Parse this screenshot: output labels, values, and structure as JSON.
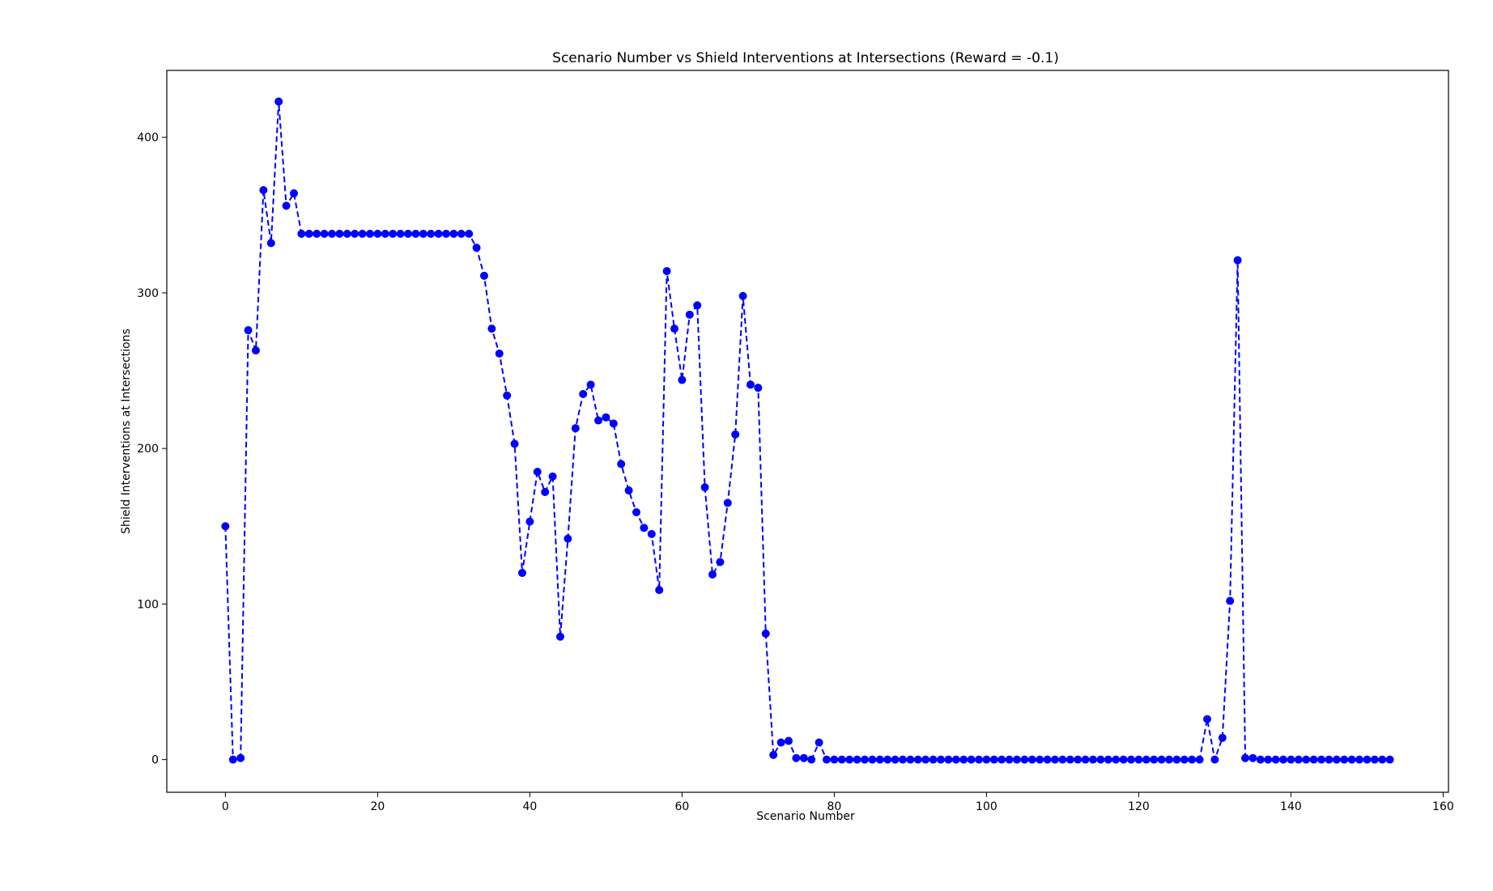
{
  "chart_data": {
    "type": "line",
    "title": "Scenario Number vs Shield Interventions at Intersections (Reward = -0.1)",
    "xlabel": "Scenario Number",
    "ylabel": "Shield Interventions at Intersections",
    "xlim": [
      -7.7,
      160.7
    ],
    "ylim": [
      -21,
      443
    ],
    "xticks": [
      0,
      20,
      40,
      60,
      80,
      100,
      120,
      140,
      160
    ],
    "yticks": [
      0,
      100,
      200,
      300,
      400
    ],
    "grid": false,
    "line_style": "dashed",
    "marker": "circle",
    "color": "#0000ff",
    "series": [
      {
        "x": [
          0,
          1,
          2,
          3,
          4,
          5,
          6,
          7,
          8,
          9,
          10,
          11,
          12,
          13,
          14,
          15,
          16,
          17,
          18,
          19,
          20,
          21,
          22,
          23,
          24,
          25,
          26,
          27,
          28,
          29,
          30,
          31,
          32,
          33,
          34,
          35,
          36,
          37,
          38,
          39,
          40,
          41,
          42,
          43,
          44,
          45,
          46,
          47,
          48,
          49,
          50,
          51,
          52,
          53,
          54,
          55,
          56,
          57,
          58,
          59,
          60,
          61,
          62,
          63,
          64,
          65,
          66,
          67,
          68,
          69,
          70,
          71,
          72,
          73,
          74,
          75,
          76,
          77,
          78,
          79,
          80,
          81,
          82,
          83,
          84,
          85,
          86,
          87,
          88,
          89,
          90,
          91,
          92,
          93,
          94,
          95,
          96,
          97,
          98,
          99,
          100,
          101,
          102,
          103,
          104,
          105,
          106,
          107,
          108,
          109,
          110,
          111,
          112,
          113,
          114,
          115,
          116,
          117,
          118,
          119,
          120,
          121,
          122,
          123,
          124,
          125,
          126,
          127,
          128,
          129,
          130,
          131,
          132,
          133,
          134,
          135,
          136,
          137,
          138,
          139,
          140,
          141,
          142,
          143,
          144,
          145,
          146,
          147,
          148,
          149,
          150,
          151,
          152,
          153
        ],
        "y": [
          150,
          0,
          1,
          276,
          263,
          366,
          332,
          423,
          356,
          364,
          338,
          338,
          338,
          338,
          338,
          338,
          338,
          338,
          338,
          338,
          338,
          338,
          338,
          338,
          338,
          338,
          338,
          338,
          338,
          338,
          338,
          338,
          338,
          329,
          311,
          277,
          261,
          234,
          203,
          120,
          153,
          185,
          172,
          182,
          79,
          142,
          213,
          235,
          241,
          218,
          220,
          216,
          190,
          173,
          159,
          149,
          145,
          109,
          314,
          277,
          244,
          286,
          292,
          175,
          119,
          127,
          165,
          209,
          298,
          241,
          239,
          81,
          3,
          11,
          12,
          1,
          1,
          0,
          11,
          0,
          0,
          0,
          0,
          0,
          0,
          0,
          0,
          0,
          0,
          0,
          0,
          0,
          0,
          0,
          0,
          0,
          0,
          0,
          0,
          0,
          0,
          0,
          0,
          0,
          0,
          0,
          0,
          0,
          0,
          0,
          0,
          0,
          0,
          0,
          0,
          0,
          0,
          0,
          0,
          0,
          0,
          0,
          0,
          0,
          0,
          0,
          0,
          0,
          0,
          26,
          0,
          14,
          102,
          321,
          1,
          1,
          0,
          0,
          0,
          0,
          0,
          0,
          0,
          0,
          0,
          0,
          0,
          0,
          0,
          0,
          0,
          0,
          0,
          0
        ]
      }
    ]
  }
}
